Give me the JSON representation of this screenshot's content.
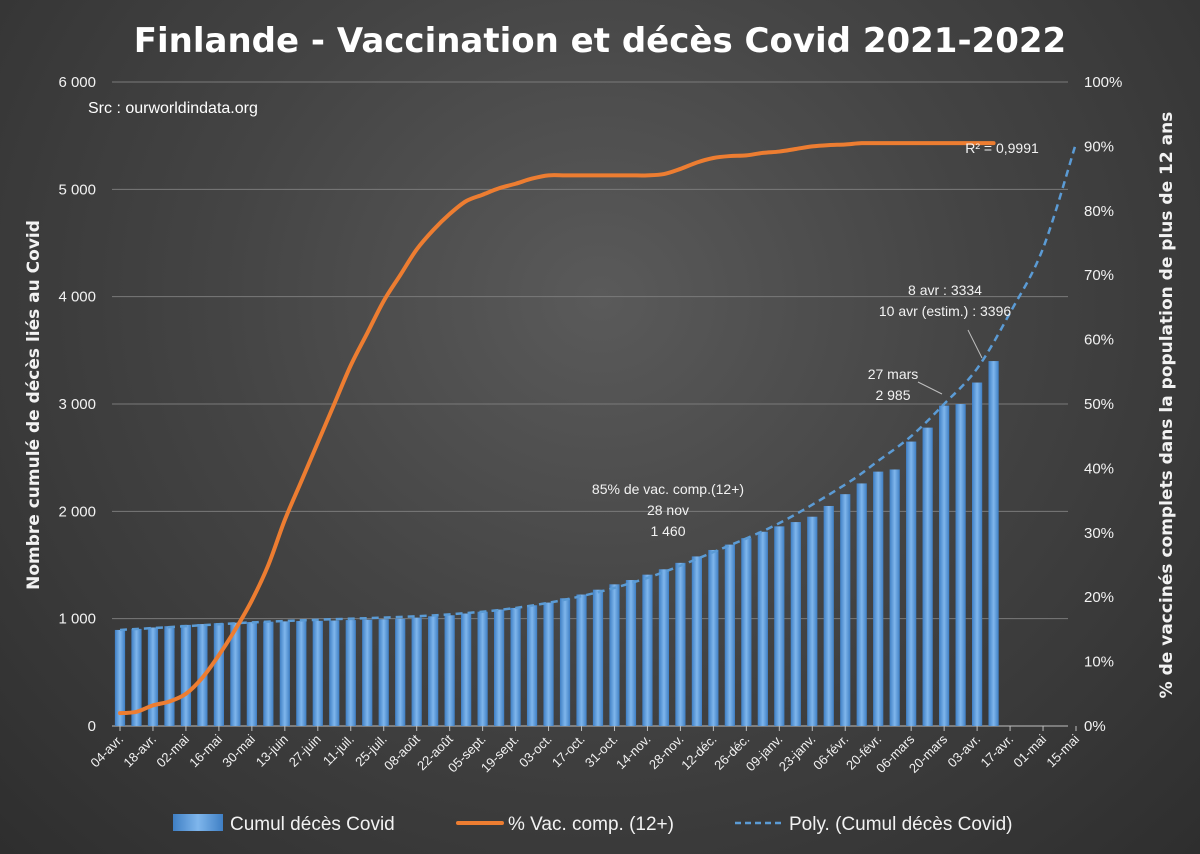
{
  "chart_data": {
    "type": "bar",
    "title": "Finlande - Vaccination et décès Covid 2021-2022",
    "source": "Src : ourworldindata.org",
    "ylabel_left": "Nombre cumulé de décès liés au Covid",
    "ylabel_right": "% de vaccinés complets dans  la population de plus de 12 ans",
    "ylim_left": [
      0,
      6000
    ],
    "ylim_right": [
      0,
      100
    ],
    "left_ticks": [
      "0",
      "1 000",
      "2 000",
      "3 000",
      "4 000",
      "5 000",
      "6 000"
    ],
    "right_ticks": [
      "0%",
      "10%",
      "20%",
      "30%",
      "40%",
      "50%",
      "60%",
      "70%",
      "80%",
      "90%",
      "100%"
    ],
    "x_tick_labels": [
      "04-avr.",
      "18-avr.",
      "02-mai",
      "16-mai",
      "30-mai",
      "13-juin",
      "27-juin",
      "11-juil.",
      "25-juil.",
      "08-août",
      "22-août",
      "05-sept.",
      "19-sept.",
      "03-oct.",
      "17-oct.",
      "31-oct.",
      "14-nov.",
      "28-nov.",
      "12-déc.",
      "26-déc.",
      "09-janv.",
      "23-janv.",
      "06-févr.",
      "20-févr.",
      "06-mars",
      "20-mars",
      "03-avr.",
      "17-avr.",
      "01-mai",
      "15-mai"
    ],
    "x_range_weeks": [
      0,
      58
    ],
    "grid": true,
    "legend_position": "bottom",
    "series": [
      {
        "name": "Cumul décès Covid",
        "type": "bar",
        "color": "#5b9bd5",
        "x_weeks": [
          0,
          1,
          2,
          3,
          4,
          5,
          6,
          7,
          8,
          9,
          10,
          11,
          12,
          13,
          14,
          15,
          16,
          17,
          18,
          19,
          20,
          21,
          22,
          23,
          24,
          25,
          26,
          27,
          28,
          29,
          30,
          31,
          32,
          33,
          34,
          35,
          36,
          37,
          38,
          39,
          40,
          41,
          42,
          43,
          44,
          45,
          46,
          47,
          48,
          49,
          50,
          51,
          52,
          53
        ],
        "values": [
          895,
          905,
          918,
          930,
          942,
          950,
          958,
          963,
          968,
          972,
          975,
          978,
          980,
          983,
          987,
          991,
          995,
          1000,
          1010,
          1022,
          1032,
          1048,
          1065,
          1085,
          1100,
          1125,
          1150,
          1190,
          1225,
          1270,
          1320,
          1360,
          1410,
          1460,
          1520,
          1580,
          1640,
          1690,
          1750,
          1810,
          1860,
          1900,
          1950,
          2050,
          2160,
          2260,
          2370,
          2390,
          2650,
          2780,
          2985,
          3000,
          3200,
          3400
        ]
      },
      {
        "name": "% Vac. comp. (12+)",
        "type": "line",
        "color": "#ed7d31",
        "x_weeks": [
          0,
          1,
          2,
          3,
          4,
          5,
          6,
          7,
          8,
          9,
          10,
          11,
          12,
          13,
          14,
          15,
          16,
          17,
          18,
          19,
          20,
          21,
          22,
          23,
          24,
          25,
          26,
          27,
          28,
          29,
          30,
          31,
          32,
          33,
          34,
          35,
          36,
          37,
          38,
          39,
          40,
          41,
          42,
          43,
          44,
          45,
          46,
          47,
          48,
          49,
          50,
          51,
          52,
          53
        ],
        "values": [
          2,
          2.2,
          3.2,
          3.8,
          5,
          7.5,
          11,
          15,
          19.5,
          25,
          32,
          38,
          44,
          50,
          56,
          61,
          66,
          70,
          74,
          77,
          79.5,
          81.5,
          82.5,
          83.5,
          84.2,
          85,
          85.5,
          85.5,
          85.5,
          85.5,
          85.5,
          85.5,
          85.5,
          85.7,
          86.5,
          87.5,
          88.2,
          88.5,
          88.6,
          89,
          89.2,
          89.6,
          90,
          90.2,
          90.3,
          90.5,
          90.5,
          90.5,
          90.5,
          90.5,
          90.5,
          90.5,
          90.5,
          90.5
        ]
      },
      {
        "name": "Poly. (Cumul décès Covid)",
        "type": "trendline",
        "color": "#5b9bd5",
        "x_weeks": [
          0,
          4,
          8,
          12,
          16,
          20,
          24,
          28,
          32,
          36,
          40,
          44,
          46,
          48,
          50,
          52,
          54,
          56,
          58
        ],
        "values": [
          895,
          930,
          965,
          990,
          1010,
          1040,
          1100,
          1210,
          1380,
          1620,
          1890,
          2250,
          2470,
          2700,
          3000,
          3330,
          3850,
          4450,
          5430
        ]
      }
    ],
    "annotations": [
      {
        "lines": [
          "85% de vac. comp.(12+)",
          "28 nov",
          "1 460"
        ]
      },
      {
        "lines": [
          "27 mars",
          "2 985"
        ]
      },
      {
        "lines": [
          "8 avr : 3334",
          "10 avr (estim.) : 3396"
        ]
      },
      {
        "lines": [
          "R² = 0,9991"
        ]
      }
    ]
  }
}
